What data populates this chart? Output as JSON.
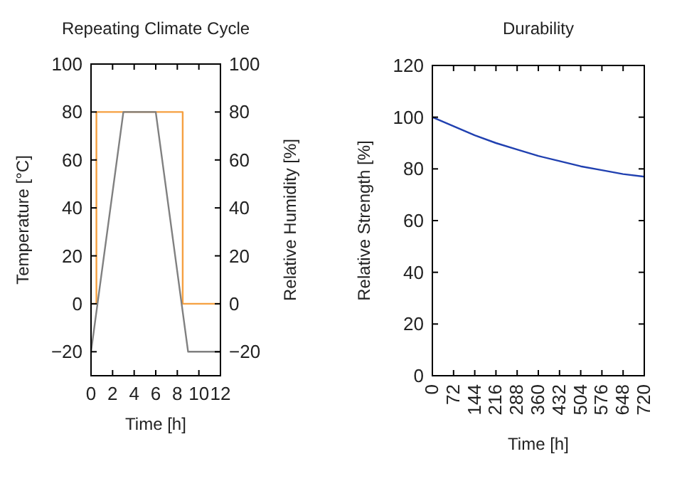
{
  "chart_data": [
    {
      "type": "line",
      "title": "Repeating Climate Cycle",
      "xlabel": "Time [h]",
      "ylabel": "Temperature [°C]",
      "y2label": "Relative Humidity [%]",
      "xlim": [
        0,
        12
      ],
      "xticks": [
        0,
        2,
        4,
        6,
        8,
        10,
        12
      ],
      "ylim": [
        -30,
        100
      ],
      "yticks": [
        -20,
        0,
        20,
        40,
        60,
        80,
        100
      ],
      "y2lim": [
        -30,
        100
      ],
      "y2ticks": [
        -20,
        0,
        20,
        40,
        60,
        80,
        100
      ],
      "grid": false,
      "series": [
        {
          "color": "#f5a040",
          "x": [
            0,
            0.5,
            0.5,
            8.5,
            8.5,
            12
          ],
          "values": [
            0,
            0,
            80,
            80,
            0,
            0
          ]
        },
        {
          "color": "#808080",
          "x": [
            0,
            3,
            6,
            9,
            12
          ],
          "values": [
            -20,
            80,
            80,
            -20,
            -20
          ]
        }
      ]
    },
    {
      "type": "line",
      "title": "Durability",
      "xlabel": "Time [h]",
      "ylabel": "Relative Strength [%]",
      "xlim": [
        0,
        720
      ],
      "xticks": [
        0,
        72,
        144,
        216,
        288,
        360,
        432,
        504,
        576,
        648,
        720
      ],
      "ylim": [
        0,
        120
      ],
      "yticks": [
        0,
        20,
        40,
        60,
        80,
        100,
        120
      ],
      "grid": false,
      "series": [
        {
          "color": "#2040b0",
          "x": [
            0,
            72,
            144,
            216,
            288,
            360,
            432,
            504,
            576,
            648,
            720
          ],
          "values": [
            100,
            96.5,
            93,
            90,
            87.5,
            85,
            83,
            81,
            79.5,
            78,
            77
          ]
        }
      ]
    }
  ]
}
